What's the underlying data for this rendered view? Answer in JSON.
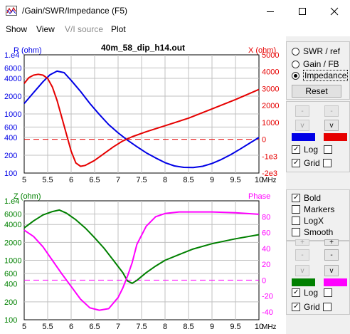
{
  "window": {
    "title": "/Gain/SWR/Impedance (F5)",
    "app_icon": "graph-app-icon",
    "buttons": [
      "minimize-icon",
      "maximize-icon",
      "close-icon"
    ]
  },
  "menu": [
    "Show",
    "View",
    "V/I source",
    "Plot"
  ],
  "plot_title": "40m_58_dip_h14.out",
  "side_panel": {
    "modes": [
      {
        "label": "SWR / ref",
        "selected": false
      },
      {
        "label": "Gain / FB",
        "selected": false
      },
      {
        "label": "Impedance",
        "selected": true
      }
    ],
    "reset_label": "Reset",
    "top_controls": {
      "log_label": "Log",
      "log_checked": true,
      "grid_label": "Grid",
      "grid_checked": true,
      "left_color": "#0000e6",
      "right_color": "#e60000"
    },
    "options": [
      {
        "label": "Bold",
        "checked": true
      },
      {
        "label": "Markers",
        "checked": false
      },
      {
        "label": "LogX",
        "checked": false
      },
      {
        "label": "Smooth",
        "checked": false
      }
    ],
    "bottom_controls": {
      "log_label": "Log",
      "log_checked": true,
      "grid_label": "Grid",
      "grid_checked": true,
      "left_color": "#008000",
      "right_color": "#ff00ff"
    },
    "small_labels": {
      "minus": "-",
      "down": "v",
      "plus": "+"
    }
  },
  "chart_data": [
    {
      "type": "line",
      "title": "40m_58_dip_h14.out",
      "xlabel": "MHz",
      "x_ticks": [
        "5",
        "5.5",
        "6",
        "6.5",
        "7",
        "7.5",
        "8",
        "8.5",
        "9",
        "9.5",
        "10"
      ],
      "xlim": [
        5,
        10
      ],
      "left_axis": {
        "label": "R (ohm)",
        "scale": "log",
        "ylim": [
          100,
          10000
        ],
        "ticks": [
          "1.e4",
          "6000",
          "4000",
          "2000",
          "1000",
          "600",
          "400",
          "200",
          "100"
        ],
        "color": "#0000e6"
      },
      "right_axis": {
        "label": "X (ohm)",
        "scale": "linear",
        "ylim": [
          -2000,
          5000
        ],
        "ticks": [
          "5000",
          "4000",
          "3000",
          "2000",
          "1000",
          "0",
          "-1e3",
          "-2e3"
        ],
        "color": "#e60000"
      },
      "grid": true,
      "series": [
        {
          "name": "R (ohm)",
          "axis": "left",
          "color": "#0000e6",
          "x": [
            5.0,
            5.2,
            5.4,
            5.55,
            5.7,
            5.85,
            6.0,
            6.2,
            6.4,
            6.6,
            6.8,
            7.0,
            7.2,
            7.4,
            7.6,
            7.8,
            8.0,
            8.2,
            8.4,
            8.6,
            8.8,
            9.0,
            9.2,
            9.4,
            9.6,
            9.8,
            10.0
          ],
          "y": [
            1500,
            2300,
            3500,
            4600,
            5300,
            5000,
            3700,
            2400,
            1500,
            980,
            660,
            480,
            360,
            280,
            220,
            180,
            150,
            132,
            125,
            124,
            130,
            145,
            170,
            205,
            255,
            320,
            400
          ]
        },
        {
          "name": "X (ohm)",
          "axis": "right",
          "color": "#e60000",
          "x": [
            5.0,
            5.1,
            5.2,
            5.3,
            5.4,
            5.5,
            5.6,
            5.7,
            5.8,
            5.9,
            6.0,
            6.1,
            6.2,
            6.3,
            6.5,
            6.7,
            6.9,
            7.1,
            7.3,
            7.6,
            8.0,
            8.5,
            9.0,
            9.5,
            10.0
          ],
          "y": [
            3300,
            3650,
            3800,
            3850,
            3800,
            3600,
            3100,
            2300,
            1300,
            300,
            -700,
            -1400,
            -1600,
            -1550,
            -1250,
            -850,
            -450,
            -100,
            150,
            450,
            800,
            1250,
            1800,
            2350,
            2950
          ]
        }
      ]
    },
    {
      "type": "line",
      "xlabel": "MHz",
      "x_ticks": [
        "5",
        "5.5",
        "6",
        "6.5",
        "7",
        "7.5",
        "8",
        "8.5",
        "9",
        "9.5",
        "10"
      ],
      "xlim": [
        5,
        10
      ],
      "left_axis": {
        "label": "Z (ohm)",
        "scale": "log",
        "ylim": [
          100,
          10000
        ],
        "ticks": [
          "1.e4",
          "6000",
          "4000",
          "2000",
          "1000",
          "600",
          "400",
          "200",
          "100"
        ],
        "color": "#008000"
      },
      "right_axis": {
        "label": "Phase",
        "scale": "linear",
        "ylim": [
          -50,
          100
        ],
        "ticks": [
          "80",
          "60",
          "40",
          "20",
          "0",
          "-20",
          "-40"
        ],
        "color": "#ff00ff"
      },
      "grid": true,
      "series": [
        {
          "name": "Z (ohm)",
          "axis": "left",
          "color": "#008000",
          "x": [
            5.0,
            5.2,
            5.4,
            5.6,
            5.75,
            5.9,
            6.1,
            6.3,
            6.5,
            6.7,
            6.9,
            7.1,
            7.2,
            7.3,
            7.4,
            7.6,
            7.8,
            8.0,
            8.3,
            8.6,
            9.0,
            9.5,
            10.0
          ],
          "y": [
            3500,
            4600,
            5800,
            6600,
            7000,
            6200,
            4800,
            3500,
            2400,
            1600,
            1000,
            620,
            450,
            410,
            460,
            620,
            800,
            1000,
            1250,
            1550,
            1900,
            2300,
            2700
          ]
        },
        {
          "name": "Phase",
          "axis": "right",
          "color": "#ff00ff",
          "x": [
            5.0,
            5.2,
            5.4,
            5.6,
            5.8,
            6.0,
            6.2,
            6.4,
            6.6,
            6.8,
            7.0,
            7.1,
            7.2,
            7.3,
            7.4,
            7.6,
            7.8,
            8.0,
            8.3,
            8.6,
            9.0,
            9.5,
            10.0
          ],
          "y": [
            63,
            55,
            42,
            25,
            8,
            -8,
            -24,
            -35,
            -38,
            -36,
            -22,
            -10,
            5,
            22,
            45,
            68,
            80,
            84,
            86,
            86,
            86,
            85,
            83
          ]
        }
      ]
    }
  ]
}
